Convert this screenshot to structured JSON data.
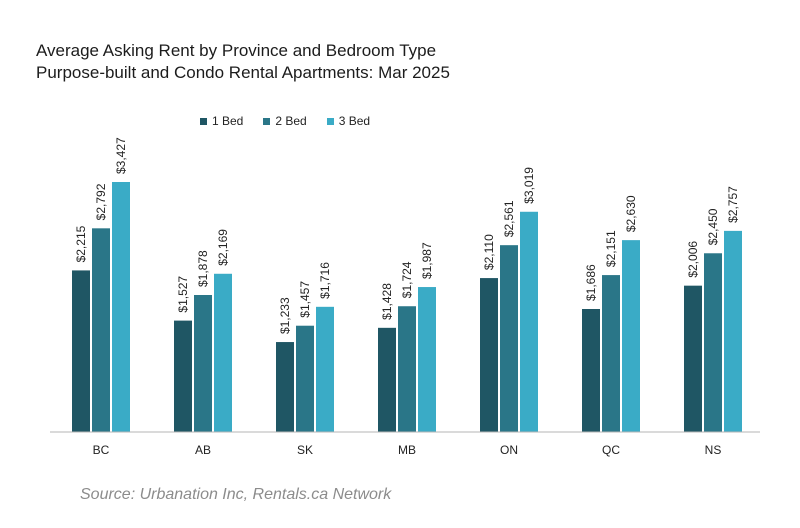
{
  "title_lines": [
    "Average Asking Rent by Province and Bedroom Type",
    "Purpose-built and Condo Rental Apartments: Mar 2025"
  ],
  "source": "Source: Urbanation Inc, Rentals.ca Network",
  "colors": {
    "bed1": "#1f5664",
    "bed2": "#2a7688",
    "bed3": "#3aabc6",
    "axis": "#b5b5b5"
  },
  "chart_data": {
    "type": "bar",
    "title": "Average Asking Rent by Province and Bedroom Type",
    "subtitle": "Purpose-built and Condo Rental Apartments: Mar 2025",
    "categories": [
      "BC",
      "AB",
      "SK",
      "MB",
      "ON",
      "QC",
      "NS"
    ],
    "series": [
      {
        "name": "1 Bed",
        "values": [
          2215,
          1527,
          1233,
          1428,
          2110,
          1686,
          2006
        ],
        "labels": [
          "$2,215",
          "$1,527",
          "$1,233",
          "$1,428",
          "$2,110",
          "$1,686",
          "$2,006"
        ]
      },
      {
        "name": "2 Bed",
        "values": [
          2792,
          1878,
          1457,
          1724,
          2561,
          2151,
          2450
        ],
        "labels": [
          "$2,792",
          "$1,878",
          "$1,457",
          "$1,724",
          "$2,561",
          "$2,151",
          "$2,450"
        ]
      },
      {
        "name": "3 Bed",
        "values": [
          3427,
          2169,
          1716,
          1987,
          3019,
          2630,
          2757
        ],
        "labels": [
          "$3,427",
          "$2,169",
          "$1,716",
          "$1,987",
          "$3,019",
          "$2,630",
          "$2,757"
        ]
      }
    ],
    "xlabel": "",
    "ylabel": "",
    "ylim": [
      0,
      3427
    ],
    "grid": false,
    "legend_position": "top"
  }
}
